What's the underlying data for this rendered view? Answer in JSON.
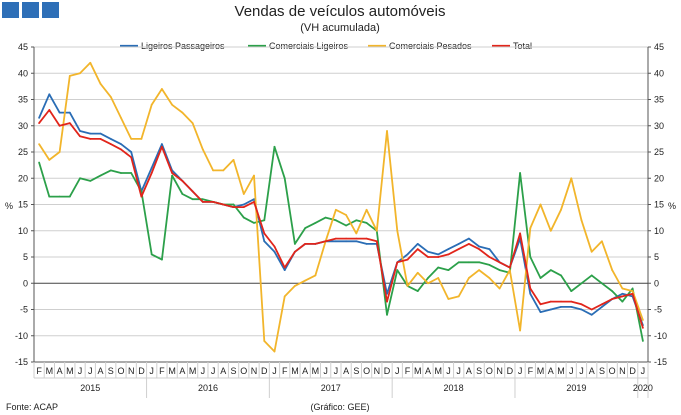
{
  "header": {
    "logo_squares": 3
  },
  "colors": {
    "logo": "#2e6fb7",
    "grid": "#cfcfcf",
    "axis": "#555555",
    "zero": "#444444"
  },
  "chart_data": {
    "type": "line",
    "title": "Vendas de veículos automóveis",
    "subtitle": "(VH acumulada)",
    "ylabel_left": "%",
    "ylabel_right": "%",
    "ylim": [
      -15,
      45
    ],
    "yticks": [
      -15,
      -10,
      -5,
      0,
      5,
      10,
      15,
      20,
      25,
      30,
      35,
      40,
      45
    ],
    "grid": true,
    "legend_position": "top",
    "source": "Fonte: ACAP",
    "credit": "(Gráfico: GEE)",
    "months": [
      "F",
      "M",
      "A",
      "M",
      "J",
      "J",
      "A",
      "S",
      "O",
      "N",
      "D",
      "J",
      "F",
      "M",
      "A",
      "M",
      "J",
      "J",
      "A",
      "S",
      "O",
      "N",
      "D",
      "J",
      "F",
      "M",
      "A",
      "M",
      "J",
      "J",
      "A",
      "S",
      "O",
      "N",
      "D",
      "J",
      "F",
      "M",
      "A",
      "M",
      "J",
      "J",
      "A",
      "S",
      "O",
      "N",
      "D",
      "J",
      "F",
      "M",
      "A",
      "M",
      "J",
      "J",
      "A",
      "S",
      "O",
      "N",
      "D",
      "J"
    ],
    "years": [
      {
        "label": "2015",
        "start": 0,
        "end": 10
      },
      {
        "label": "2016",
        "start": 11,
        "end": 22
      },
      {
        "label": "2017",
        "start": 23,
        "end": 34
      },
      {
        "label": "2018",
        "start": 35,
        "end": 46
      },
      {
        "label": "2019",
        "start": 47,
        "end": 58
      },
      {
        "label": "2020",
        "start": 59,
        "end": 59
      }
    ],
    "series": [
      {
        "name": "Ligeiros Passageiros",
        "color": "#2a6db5",
        "values": [
          31.5,
          36,
          32.5,
          32.5,
          29,
          28.5,
          28.5,
          27.5,
          26.5,
          25,
          17.5,
          22,
          26.5,
          21.5,
          19.5,
          17.5,
          15.5,
          15.5,
          15,
          14.5,
          15,
          16,
          8,
          6,
          2.5,
          6,
          7.5,
          7.5,
          8,
          8,
          8,
          8,
          7.5,
          7.5,
          -2,
          4,
          5.5,
          7.5,
          6,
          5.5,
          6.5,
          7.5,
          8.5,
          7,
          6.5,
          4,
          3,
          8.5,
          -2,
          -5.5,
          -5,
          -4.5,
          -4.5,
          -5,
          -6,
          -4.5,
          -3,
          -2,
          -2.5,
          -8
        ]
      },
      {
        "name": "Comerciais Ligeiros",
        "color": "#2ca04a",
        "values": [
          23,
          16.5,
          16.5,
          16.5,
          20,
          19.5,
          20.5,
          21.5,
          21,
          21,
          17.5,
          5.5,
          4.5,
          20.5,
          17,
          16,
          16,
          15.5,
          15,
          15,
          12.5,
          11.5,
          12,
          26,
          20,
          7.5,
          10.5,
          11.5,
          12.5,
          12,
          11,
          12,
          11.5,
          10,
          -6,
          2.5,
          -0.5,
          -1.5,
          1,
          3,
          2.5,
          4,
          4,
          4,
          3.5,
          2.5,
          2,
          21,
          5,
          1,
          2.5,
          1.5,
          -1.5,
          0,
          1.5,
          0,
          -1.5,
          -3.5,
          -1,
          -11
        ]
      },
      {
        "name": "Comerciais Pesados",
        "color": "#f2b52b",
        "values": [
          26.5,
          23.5,
          25,
          39.5,
          40,
          42,
          38,
          35.5,
          31.5,
          27.5,
          27.5,
          34,
          37,
          34,
          32.5,
          30.5,
          25.5,
          21.5,
          21.5,
          23.5,
          17,
          20.5,
          -11,
          -13,
          -2.5,
          -0.5,
          0.5,
          1.5,
          8,
          14,
          13,
          9.5,
          14,
          10,
          29,
          10,
          -0.5,
          2,
          0,
          1,
          -3,
          -2.5,
          1,
          2.5,
          1,
          -1,
          2.5,
          -9,
          10.5,
          15,
          10,
          14,
          20,
          12,
          6,
          8,
          2.5,
          -1,
          -1.5,
          -7
        ]
      },
      {
        "name": "Total",
        "color": "#e1251b",
        "values": [
          30.5,
          33,
          30,
          30.5,
          28,
          27.5,
          27.5,
          26.5,
          25.5,
          24,
          16.5,
          21,
          26,
          21,
          19.5,
          17.5,
          15.5,
          15.5,
          15,
          14.5,
          14.5,
          15.5,
          9.5,
          7,
          3,
          6,
          7.5,
          7.5,
          8,
          8.5,
          8.5,
          8.5,
          8.5,
          8,
          -3.5,
          4,
          4.5,
          6.5,
          5,
          5,
          5.5,
          6.5,
          7.5,
          6.5,
          5,
          4,
          3,
          9.5,
          -1,
          -4,
          -3.5,
          -3.5,
          -3.5,
          -4,
          -5,
          -4,
          -3,
          -2.5,
          -2,
          -8.5
        ]
      }
    ]
  }
}
